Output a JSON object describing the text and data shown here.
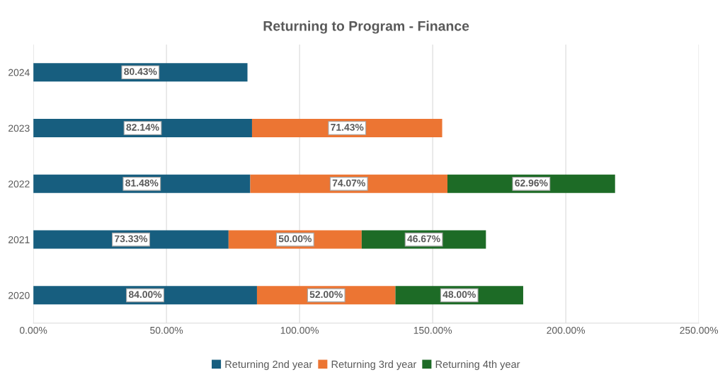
{
  "chart_data": {
    "type": "bar",
    "orientation": "horizontal",
    "stacked": true,
    "title": "Returning to Program - Finance",
    "categories": [
      "2024",
      "2023",
      "2022",
      "2021",
      "2020"
    ],
    "series": [
      {
        "name": "Returning 2nd year",
        "color": "#175e7f",
        "values": [
          80.43,
          82.14,
          81.48,
          73.33,
          84.0
        ],
        "value_labels": [
          "80.43%",
          "82.14%",
          "81.48%",
          "73.33%",
          "84.00%"
        ]
      },
      {
        "name": "Returning 3rd year",
        "color": "#ec7533",
        "values": [
          null,
          71.43,
          74.07,
          50.0,
          52.0
        ],
        "value_labels": [
          null,
          "71.43%",
          "74.07%",
          "50.00%",
          "52.00%"
        ]
      },
      {
        "name": "Returning 4th year",
        "color": "#1d6b26",
        "values": [
          null,
          null,
          62.96,
          46.67,
          48.0
        ],
        "value_labels": [
          null,
          null,
          "62.96%",
          "46.67%",
          "48.00%"
        ]
      }
    ],
    "xlim": [
      0,
      250
    ],
    "xticks": [
      {
        "value": 0,
        "label": "0.00%"
      },
      {
        "value": 50,
        "label": "50.00%"
      },
      {
        "value": 100,
        "label": "100.00%"
      },
      {
        "value": 150,
        "label": "150.00%"
      },
      {
        "value": 200,
        "label": "200.00%"
      },
      {
        "value": 250,
        "label": "250.00%"
      }
    ],
    "grid": "x",
    "legend": "bottom"
  }
}
